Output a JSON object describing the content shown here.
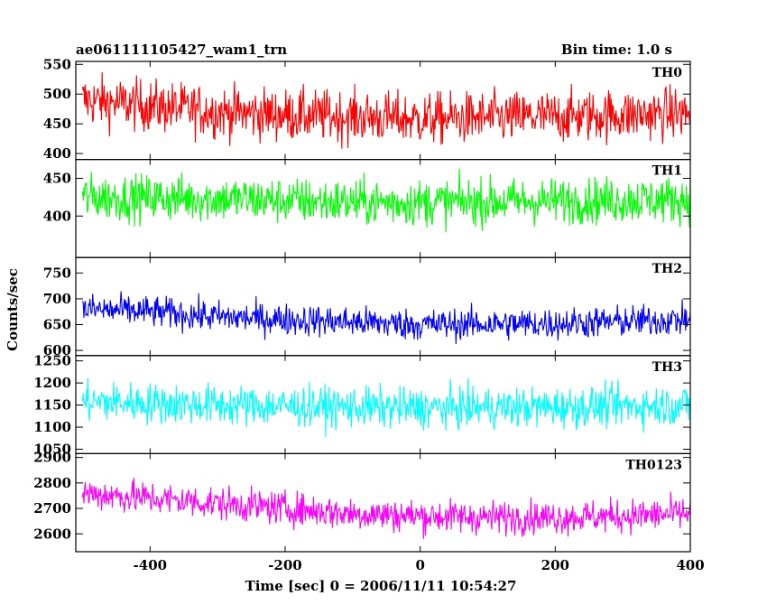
{
  "chart_data": {
    "type": "line",
    "title_left": "ae061111105427_wam1_trn",
    "title_right": "Bin time: 1.0 s",
    "xlabel": "Time [sec] 0 = 2006/11/11 10:54:27",
    "ylabel": "Counts/sec",
    "xlim": [
      -510,
      400
    ],
    "xticks": [
      -400,
      -200,
      0,
      200,
      400
    ],
    "grid": false,
    "panels": [
      {
        "name": "TH0",
        "color": "#ff0000",
        "ylim": [
          390,
          555
        ],
        "yticks": [
          400,
          450,
          500,
          550
        ],
        "baseline": [
          [
            -500,
            490
          ],
          [
            -400,
            480
          ],
          [
            -300,
            470
          ],
          [
            -200,
            465
          ],
          [
            -100,
            462
          ],
          [
            0,
            458
          ],
          [
            100,
            460
          ],
          [
            200,
            462
          ],
          [
            300,
            465
          ],
          [
            400,
            468
          ]
        ],
        "amplitude": 40
      },
      {
        "name": "TH1",
        "color": "#00ff00",
        "ylim": [
          345,
          475
        ],
        "yticks": [
          400,
          450
        ],
        "baseline": [
          [
            -500,
            425
          ],
          [
            -300,
            423
          ],
          [
            -100,
            418
          ],
          [
            0,
            418
          ],
          [
            200,
            420
          ],
          [
            400,
            422
          ]
        ],
        "amplitude": 28
      },
      {
        "name": "TH2",
        "color": "#0000ff",
        "ylim": [
          590,
          780
        ],
        "yticks": [
          600,
          650,
          700,
          750
        ],
        "baseline": [
          [
            -500,
            680
          ],
          [
            -400,
            675
          ],
          [
            -300,
            665
          ],
          [
            -200,
            660
          ],
          [
            0,
            650
          ],
          [
            200,
            652
          ],
          [
            400,
            660
          ]
        ],
        "amplitude": 28
      },
      {
        "name": "TH3",
        "color": "#00ffff",
        "ylim": [
          1040,
          1262
        ],
        "yticks": [
          1050,
          1100,
          1150,
          1200,
          1250
        ],
        "baseline": [
          [
            -500,
            1158
          ],
          [
            -300,
            1150
          ],
          [
            -100,
            1145
          ],
          [
            0,
            1143
          ],
          [
            200,
            1145
          ],
          [
            400,
            1150
          ]
        ],
        "amplitude": 42
      },
      {
        "name": "TH0123",
        "color": "#ff00ff",
        "ylim": [
          2530,
          2915
        ],
        "yticks": [
          2600,
          2700,
          2800,
          2900
        ],
        "baseline": [
          [
            -500,
            2760
          ],
          [
            -400,
            2740
          ],
          [
            -300,
            2720
          ],
          [
            -200,
            2700
          ],
          [
            -100,
            2680
          ],
          [
            0,
            2670
          ],
          [
            100,
            2665
          ],
          [
            200,
            2665
          ],
          [
            300,
            2670
          ],
          [
            400,
            2680
          ]
        ],
        "amplitude": 60
      }
    ]
  }
}
